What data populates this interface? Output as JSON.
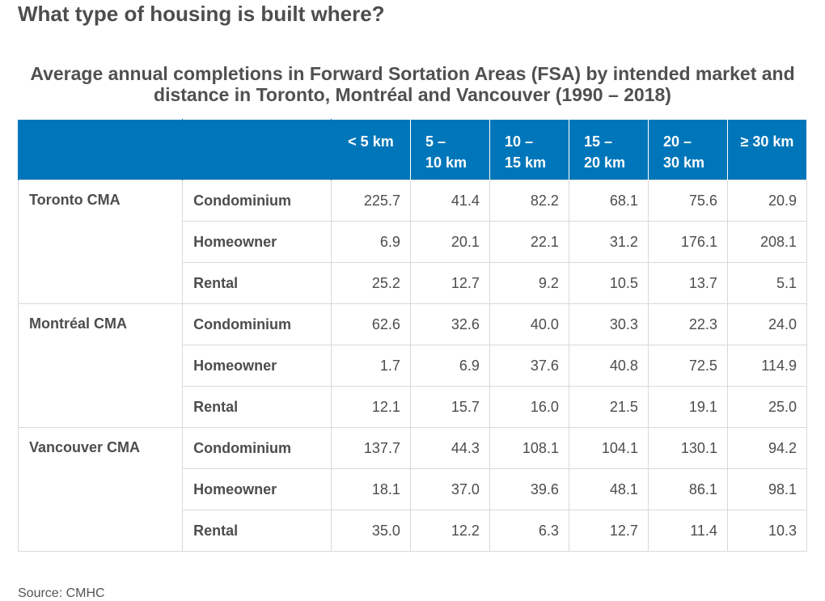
{
  "page_title": "What type of housing is built where?",
  "table_title": "Average annual completions in Forward Sortation Areas (FSA) by intended market and distance in Toronto, Montréal and Vancouver (1990 – 2018)",
  "header": {
    "col1": "< 5 km",
    "col2_line1": "5 –",
    "col2_line2": "10 km",
    "col3_line1": "10 –",
    "col3_line2": "15 km",
    "col4_line1": "15 –",
    "col4_line2": "20 km",
    "col5_line1": "20 –",
    "col5_line2": "30 km",
    "col6": "≥ 30 km"
  },
  "groups": [
    {
      "city": "Toronto CMA",
      "rows": [
        {
          "market": "Condominium",
          "values": [
            "225.7",
            "41.4",
            "82.2",
            "68.1",
            "75.6",
            "20.9"
          ]
        },
        {
          "market": "Homeowner",
          "values": [
            "6.9",
            "20.1",
            "22.1",
            "31.2",
            "176.1",
            "208.1"
          ]
        },
        {
          "market": "Rental",
          "values": [
            "25.2",
            "12.7",
            "9.2",
            "10.5",
            "13.7",
            "5.1"
          ]
        }
      ]
    },
    {
      "city": "Montréal CMA",
      "rows": [
        {
          "market": "Condominium",
          "values": [
            "62.6",
            "32.6",
            "40.0",
            "30.3",
            "22.3",
            "24.0"
          ]
        },
        {
          "market": "Homeowner",
          "values": [
            "1.7",
            "6.9",
            "37.6",
            "40.8",
            "72.5",
            "114.9"
          ]
        },
        {
          "market": "Rental",
          "values": [
            "12.1",
            "15.7",
            "16.0",
            "21.5",
            "19.1",
            "25.0"
          ]
        }
      ]
    },
    {
      "city": "Vancouver CMA",
      "rows": [
        {
          "market": "Condominium",
          "values": [
            "137.7",
            "44.3",
            "108.1",
            "104.1",
            "130.1",
            "94.2"
          ]
        },
        {
          "market": "Homeowner",
          "values": [
            "18.1",
            "37.0",
            "39.6",
            "48.1",
            "86.1",
            "98.1"
          ]
        },
        {
          "market": "Rental",
          "values": [
            "35.0",
            "12.2",
            "6.3",
            "12.7",
            "11.4",
            "10.3"
          ]
        }
      ]
    }
  ],
  "source": "Source: CMHC",
  "colors": {
    "header_bg": "#0076ba",
    "header_text": "#ffffff",
    "border": "#d9d9d9",
    "text": "#4d4d4d"
  }
}
